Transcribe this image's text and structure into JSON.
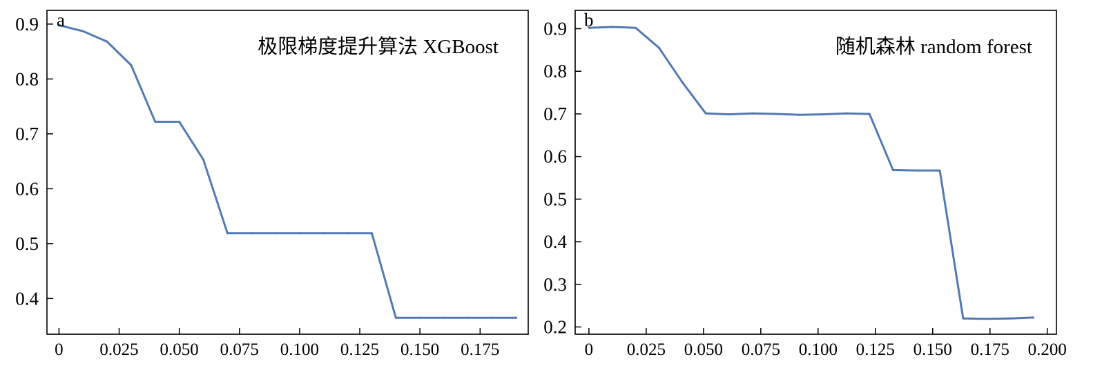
{
  "chart_data": [
    {
      "type": "line",
      "panel_label": "a",
      "annotation": "极限梯度提升算法 XGBoost",
      "x_ticks": [
        "0",
        "0.025",
        "0.050",
        "0.075",
        "0.100",
        "0.125",
        "0.150",
        "0.175"
      ],
      "x_tick_values": [
        0,
        0.025,
        0.05,
        0.075,
        0.1,
        0.125,
        0.15,
        0.175
      ],
      "y_ticks": [
        "0.4",
        "0.5",
        "0.6",
        "0.7",
        "0.8",
        "0.9"
      ],
      "y_tick_values": [
        0.4,
        0.5,
        0.6,
        0.7,
        0.8,
        0.9
      ],
      "xlim": [
        -0.005,
        0.195
      ],
      "ylim": [
        0.335,
        0.925
      ],
      "grid": false,
      "color": "#4a72b0",
      "x": [
        0,
        0.01,
        0.02,
        0.03,
        0.04,
        0.05,
        0.06,
        0.07,
        0.08,
        0.09,
        0.1,
        0.11,
        0.12,
        0.13,
        0.14,
        0.15,
        0.16,
        0.17,
        0.18,
        0.19
      ],
      "y": [
        0.898,
        0.887,
        0.868,
        0.825,
        0.722,
        0.722,
        0.653,
        0.519,
        0.519,
        0.519,
        0.519,
        0.519,
        0.519,
        0.519,
        0.365,
        0.365,
        0.365,
        0.365,
        0.365,
        0.365
      ]
    },
    {
      "type": "line",
      "panel_label": "b",
      "annotation": "随机森林 random forest",
      "x_ticks": [
        "0",
        "0.025",
        "0.050",
        "0.075",
        "0.100",
        "0.125",
        "0.150",
        "0.175",
        "0.200"
      ],
      "x_tick_values": [
        0,
        0.025,
        0.05,
        0.075,
        0.1,
        0.125,
        0.15,
        0.175,
        0.2
      ],
      "y_ticks": [
        "0.2",
        "0.3",
        "0.4",
        "0.5",
        "0.6",
        "0.7",
        "0.8",
        "0.9"
      ],
      "y_tick_values": [
        0.2,
        0.3,
        0.4,
        0.5,
        0.6,
        0.7,
        0.8,
        0.9
      ],
      "xlim": [
        -0.006,
        0.204
      ],
      "ylim": [
        0.183,
        0.943
      ],
      "grid": false,
      "color": "#4a72b0",
      "x": [
        0,
        0.0102,
        0.0204,
        0.0306,
        0.0408,
        0.051,
        0.0612,
        0.0714,
        0.0816,
        0.0918,
        0.102,
        0.1122,
        0.1224,
        0.1327,
        0.1429,
        0.1531,
        0.1633,
        0.1735,
        0.1837,
        0.1939
      ],
      "y": [
        0.902,
        0.904,
        0.902,
        0.855,
        0.774,
        0.701,
        0.699,
        0.701,
        0.7,
        0.698,
        0.699,
        0.701,
        0.7,
        0.568,
        0.567,
        0.567,
        0.22,
        0.219,
        0.22,
        0.222
      ]
    }
  ]
}
